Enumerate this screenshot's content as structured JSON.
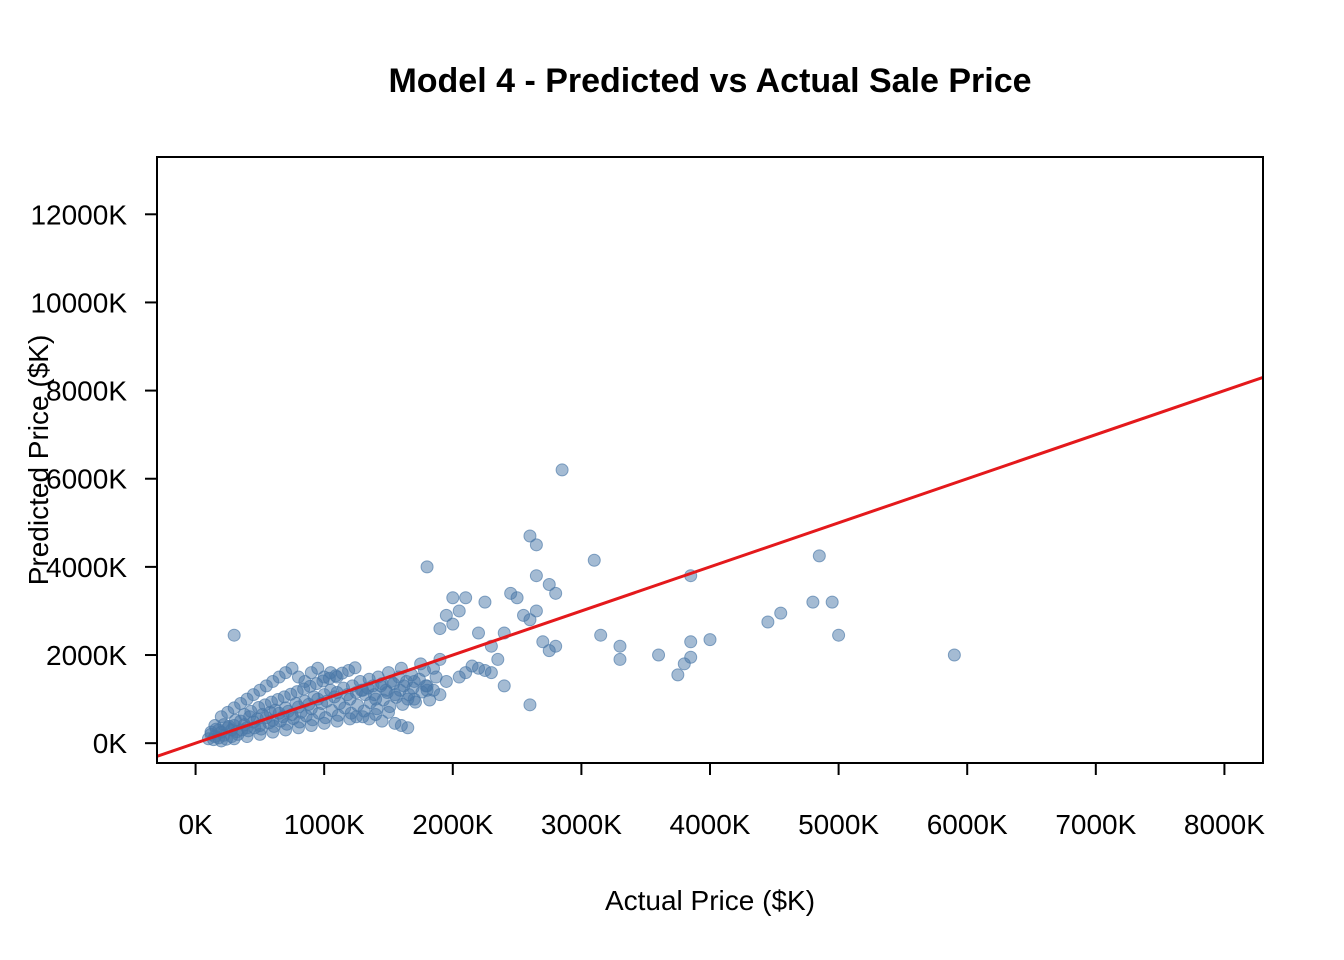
{
  "chart_data": {
    "type": "scatter",
    "title": "Model 4 - Predicted vs Actual Sale Price",
    "xlabel": "Actual Price ($K)",
    "ylabel": "Predicted Price ($K)",
    "xlim": [
      -300,
      8300
    ],
    "ylim": [
      -450,
      13300
    ],
    "x_ticks": [
      0,
      1000,
      2000,
      3000,
      4000,
      5000,
      6000,
      7000,
      8000
    ],
    "x_tick_labels": [
      "0K",
      "1000K",
      "2000K",
      "3000K",
      "4000K",
      "5000K",
      "6000K",
      "7000K",
      "8000K"
    ],
    "y_ticks": [
      0,
      2000,
      4000,
      6000,
      8000,
      10000,
      12000
    ],
    "y_tick_labels": [
      "0K",
      "2000K",
      "4000K",
      "6000K",
      "8000K",
      "10000K",
      "12000K"
    ],
    "grid": false,
    "legend": "none",
    "point_color": "#4A78A8",
    "line_color": "#E4191C",
    "reference_line": {
      "intercept": 0,
      "slope": 1
    },
    "series": [
      {
        "points": [
          [
            100,
            100
          ],
          [
            120,
            200
          ],
          [
            150,
            150
          ],
          [
            180,
            300
          ],
          [
            200,
            250
          ],
          [
            220,
            180
          ],
          [
            250,
            350
          ],
          [
            280,
            300
          ],
          [
            300,
            400
          ],
          [
            320,
            260
          ],
          [
            350,
            500
          ],
          [
            380,
            420
          ],
          [
            400,
            350
          ],
          [
            420,
            600
          ],
          [
            450,
            480
          ],
          [
            480,
            550
          ],
          [
            500,
            400
          ],
          [
            520,
            650
          ],
          [
            550,
            580
          ],
          [
            580,
            700
          ],
          [
            600,
            520
          ],
          [
            620,
            750
          ],
          [
            650,
            680
          ],
          [
            680,
            600
          ],
          [
            700,
            800
          ],
          [
            720,
            720
          ],
          [
            750,
            650
          ],
          [
            780,
            900
          ],
          [
            800,
            820
          ],
          [
            820,
            700
          ],
          [
            850,
            950
          ],
          [
            880,
            880
          ],
          [
            900,
            780
          ],
          [
            920,
            1050
          ],
          [
            950,
            1000
          ],
          [
            980,
            900
          ],
          [
            1000,
            1100
          ],
          [
            1020,
            950
          ],
          [
            1050,
            1200
          ],
          [
            1080,
            1050
          ],
          [
            1100,
            1150
          ],
          [
            1120,
            900
          ],
          [
            1150,
            1250
          ],
          [
            1180,
            1100
          ],
          [
            1200,
            1000
          ],
          [
            1220,
            1300
          ],
          [
            1250,
            1150
          ],
          [
            1280,
            1400
          ],
          [
            1300,
            1200
          ],
          [
            1320,
            1100
          ],
          [
            1350,
            1450
          ],
          [
            1380,
            1300
          ],
          [
            1400,
            1000
          ],
          [
            1420,
            1500
          ],
          [
            1450,
            1350
          ],
          [
            1480,
            1200
          ],
          [
            1500,
            1600
          ],
          [
            1520,
            1400
          ],
          [
            1550,
            1100
          ],
          [
            1580,
            1500
          ],
          [
            1600,
            1700
          ],
          [
            1620,
            1300
          ],
          [
            1650,
            1000
          ],
          [
            1680,
            1550
          ],
          [
            1700,
            1400
          ],
          [
            1750,
            1800
          ],
          [
            1780,
            1650
          ],
          [
            1800,
            1200
          ],
          [
            1850,
            1700
          ],
          [
            1900,
            1900
          ],
          [
            150,
            400
          ],
          [
            200,
            600
          ],
          [
            250,
            700
          ],
          [
            300,
            800
          ],
          [
            350,
            900
          ],
          [
            400,
            1000
          ],
          [
            450,
            1100
          ],
          [
            500,
            1200
          ],
          [
            550,
            1300
          ],
          [
            600,
            1400
          ],
          [
            650,
            1500
          ],
          [
            700,
            1600
          ],
          [
            750,
            1700
          ],
          [
            800,
            1500
          ],
          [
            850,
            1400
          ],
          [
            900,
            1600
          ],
          [
            950,
            1700
          ],
          [
            1000,
            1500
          ],
          [
            1050,
            1600
          ],
          [
            1100,
            1500
          ],
          [
            200,
            50
          ],
          [
            300,
            100
          ],
          [
            400,
            150
          ],
          [
            500,
            200
          ],
          [
            600,
            250
          ],
          [
            700,
            300
          ],
          [
            800,
            350
          ],
          [
            900,
            400
          ],
          [
            1000,
            450
          ],
          [
            1100,
            500
          ],
          [
            1200,
            550
          ],
          [
            1300,
            600
          ],
          [
            1400,
            650
          ],
          [
            1500,
            700
          ],
          [
            1600,
            400
          ],
          [
            1650,
            350
          ],
          [
            1550,
            450
          ],
          [
            1450,
            500
          ],
          [
            1350,
            550
          ],
          [
            1250,
            600
          ],
          [
            300,
            2450
          ],
          [
            1800,
            4000
          ],
          [
            1950,
            2900
          ],
          [
            2000,
            3300
          ],
          [
            2100,
            3300
          ],
          [
            2050,
            3000
          ],
          [
            1900,
            2600
          ],
          [
            2000,
            2700
          ],
          [
            2200,
            2500
          ],
          [
            2250,
            3200
          ],
          [
            2300,
            2200
          ],
          [
            2350,
            1900
          ],
          [
            2400,
            2500
          ],
          [
            2450,
            3400
          ],
          [
            2500,
            3300
          ],
          [
            2550,
            2900
          ],
          [
            2600,
            2800
          ],
          [
            2650,
            3000
          ],
          [
            2700,
            2300
          ],
          [
            2750,
            2100
          ],
          [
            2800,
            2200
          ],
          [
            2750,
            3600
          ],
          [
            2800,
            3400
          ],
          [
            2650,
            3800
          ],
          [
            2600,
            4700
          ],
          [
            2650,
            4500
          ],
          [
            2850,
            6200
          ],
          [
            2600,
            870
          ],
          [
            2400,
            1300
          ],
          [
            2300,
            1600
          ],
          [
            2200,
            1700
          ],
          [
            2100,
            1600
          ],
          [
            2050,
            1500
          ],
          [
            1950,
            1400
          ],
          [
            1900,
            1100
          ],
          [
            1800,
            1300
          ],
          [
            1700,
            1000
          ],
          [
            2250,
            1650
          ],
          [
            2150,
            1750
          ],
          [
            1850,
            1200
          ],
          [
            3100,
            4150
          ],
          [
            3150,
            2450
          ],
          [
            3300,
            2200
          ],
          [
            3300,
            1900
          ],
          [
            3600,
            2000
          ],
          [
            3750,
            1550
          ],
          [
            3800,
            1800
          ],
          [
            3850,
            1950
          ],
          [
            3850,
            2300
          ],
          [
            3850,
            3800
          ],
          [
            4000,
            2350
          ],
          [
            4450,
            2750
          ],
          [
            4550,
            2950
          ],
          [
            4800,
            3200
          ],
          [
            4850,
            4250
          ],
          [
            4950,
            3200
          ],
          [
            5000,
            2450
          ],
          [
            5900,
            2000
          ],
          [
            120,
            250
          ],
          [
            140,
            80
          ],
          [
            160,
            320
          ],
          [
            180,
            120
          ],
          [
            220,
            420
          ],
          [
            240,
            90
          ],
          [
            260,
            380
          ],
          [
            280,
            150
          ],
          [
            310,
            520
          ],
          [
            330,
            200
          ],
          [
            360,
            300
          ],
          [
            380,
            650
          ],
          [
            410,
            280
          ],
          [
            430,
            720
          ],
          [
            460,
            350
          ],
          [
            490,
            810
          ],
          [
            510,
            320
          ],
          [
            540,
            870
          ],
          [
            570,
            460
          ],
          [
            590,
            930
          ],
          [
            610,
            380
          ],
          [
            640,
            990
          ],
          [
            660,
            500
          ],
          [
            690,
            1050
          ],
          [
            710,
            430
          ],
          [
            740,
            1110
          ],
          [
            760,
            560
          ],
          [
            790,
            1170
          ],
          [
            810,
            480
          ],
          [
            840,
            1230
          ],
          [
            860,
            620
          ],
          [
            890,
            1290
          ],
          [
            910,
            530
          ],
          [
            940,
            1350
          ],
          [
            960,
            680
          ],
          [
            990,
            1410
          ],
          [
            1010,
            580
          ],
          [
            1040,
            1470
          ],
          [
            1060,
            740
          ],
          [
            1090,
            1530
          ],
          [
            1110,
            630
          ],
          [
            1140,
            1590
          ],
          [
            1160,
            800
          ],
          [
            1190,
            1650
          ],
          [
            1210,
            680
          ],
          [
            1240,
            1710
          ],
          [
            1260,
            860
          ],
          [
            1290,
            1200
          ],
          [
            1310,
            730
          ],
          [
            1340,
            1250
          ],
          [
            1360,
            920
          ],
          [
            1390,
            1100
          ],
          [
            1410,
            780
          ],
          [
            1440,
            1300
          ],
          [
            1460,
            980
          ],
          [
            1490,
            1150
          ],
          [
            1510,
            830
          ],
          [
            1540,
            1350
          ],
          [
            1560,
            1040
          ],
          [
            1590,
            1200
          ],
          [
            1610,
            880
          ],
          [
            1640,
            1400
          ],
          [
            1660,
            1100
          ],
          [
            1690,
            1250
          ],
          [
            1710,
            930
          ],
          [
            1740,
            1450
          ],
          [
            1760,
            1160
          ],
          [
            1790,
            1300
          ],
          [
            1820,
            980
          ],
          [
            1870,
            1500
          ]
        ]
      }
    ]
  }
}
